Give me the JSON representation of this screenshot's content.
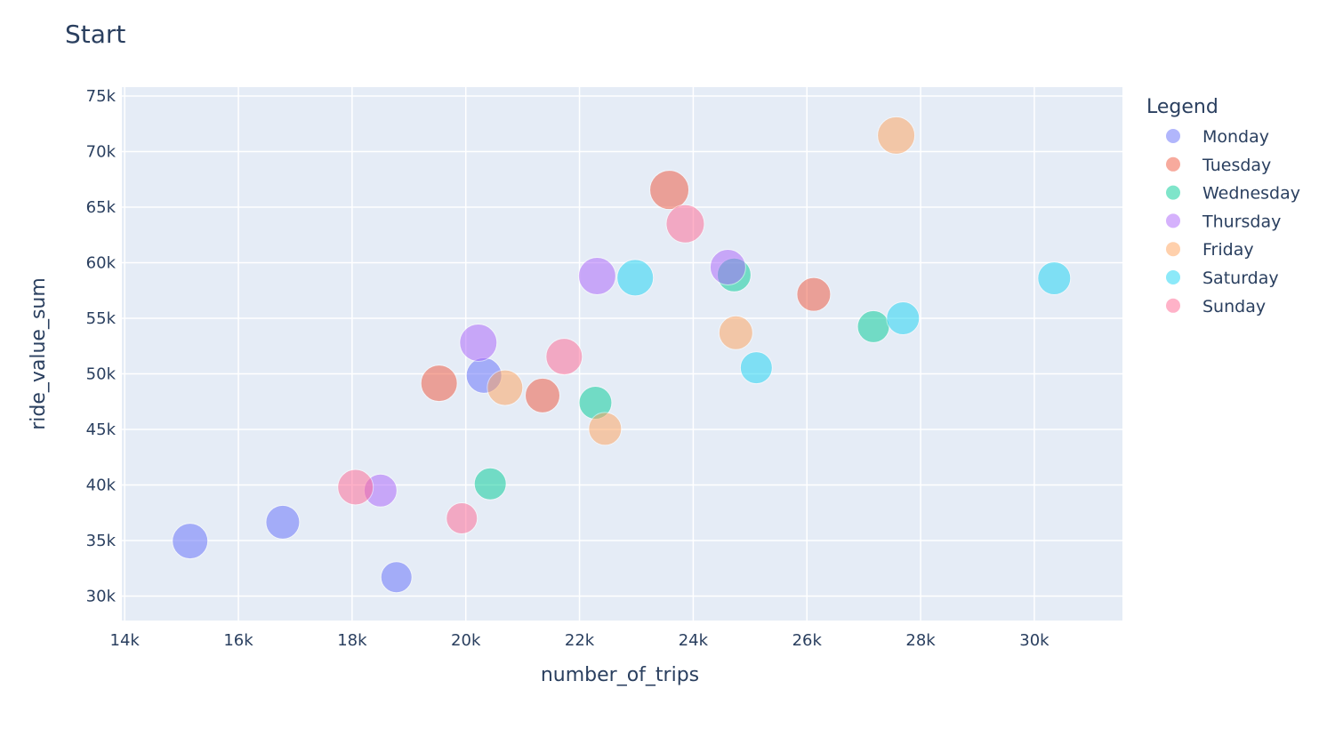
{
  "chart_data": {
    "type": "scatter",
    "title": "Start",
    "xlabel": "number_of_trips",
    "ylabel": "ride_value_sum",
    "xlim": [
      13950,
      31550
    ],
    "ylim": [
      27800,
      75800
    ],
    "x_ticks": [
      14000,
      16000,
      18000,
      20000,
      22000,
      24000,
      26000,
      28000,
      30000
    ],
    "x_tick_labels": [
      "14k",
      "16k",
      "18k",
      "20k",
      "22k",
      "24k",
      "26k",
      "28k",
      "30k"
    ],
    "y_ticks": [
      30000,
      35000,
      40000,
      45000,
      50000,
      55000,
      60000,
      65000,
      70000,
      75000
    ],
    "y_tick_labels": [
      "30k",
      "35k",
      "40k",
      "45k",
      "50k",
      "55k",
      "60k",
      "65k",
      "70k",
      "75k"
    ],
    "grid": true,
    "legend": {
      "title": "Legend",
      "position": "right"
    },
    "series": [
      {
        "name": "Monday",
        "color": "#636efa",
        "points": [
          {
            "x": 15150,
            "y": 34950,
            "size": 40
          },
          {
            "x": 16780,
            "y": 36650,
            "size": 38
          },
          {
            "x": 18780,
            "y": 31700,
            "size": 35
          },
          {
            "x": 20320,
            "y": 49850,
            "size": 40
          }
        ]
      },
      {
        "name": "Tuesday",
        "color": "#ef553b",
        "points": [
          {
            "x": 19530,
            "y": 49150,
            "size": 41
          },
          {
            "x": 21350,
            "y": 48050,
            "size": 39
          },
          {
            "x": 23580,
            "y": 66550,
            "size": 44
          },
          {
            "x": 26120,
            "y": 57150,
            "size": 38
          }
        ]
      },
      {
        "name": "Wednesday",
        "color": "#00cc96",
        "points": [
          {
            "x": 20430,
            "y": 40100,
            "size": 36
          },
          {
            "x": 22280,
            "y": 47400,
            "size": 37
          },
          {
            "x": 24720,
            "y": 58900,
            "size": 38
          },
          {
            "x": 27170,
            "y": 54250,
            "size": 36
          }
        ]
      },
      {
        "name": "Thursday",
        "color": "#ab63fa",
        "points": [
          {
            "x": 18500,
            "y": 39500,
            "size": 37
          },
          {
            "x": 20220,
            "y": 52800,
            "size": 42
          },
          {
            "x": 22310,
            "y": 58800,
            "size": 42
          },
          {
            "x": 24610,
            "y": 59600,
            "size": 40
          }
        ]
      },
      {
        "name": "Friday",
        "color": "#ffa15a",
        "points": [
          {
            "x": 20690,
            "y": 48750,
            "size": 40
          },
          {
            "x": 22450,
            "y": 45050,
            "size": 37
          },
          {
            "x": 24750,
            "y": 53700,
            "size": 38
          },
          {
            "x": 27570,
            "y": 71450,
            "size": 42
          }
        ]
      },
      {
        "name": "Saturday",
        "color": "#19d3f3",
        "points": [
          {
            "x": 22980,
            "y": 58650,
            "size": 41
          },
          {
            "x": 25110,
            "y": 50550,
            "size": 36
          },
          {
            "x": 27690,
            "y": 55000,
            "size": 37
          },
          {
            "x": 30350,
            "y": 58600,
            "size": 37
          }
        ]
      },
      {
        "name": "Sunday",
        "color": "#ff6692",
        "points": [
          {
            "x": 18060,
            "y": 39800,
            "size": 40
          },
          {
            "x": 19930,
            "y": 37000,
            "size": 35
          },
          {
            "x": 21730,
            "y": 51550,
            "size": 41
          },
          {
            "x": 23860,
            "y": 63500,
            "size": 43
          }
        ]
      }
    ]
  }
}
